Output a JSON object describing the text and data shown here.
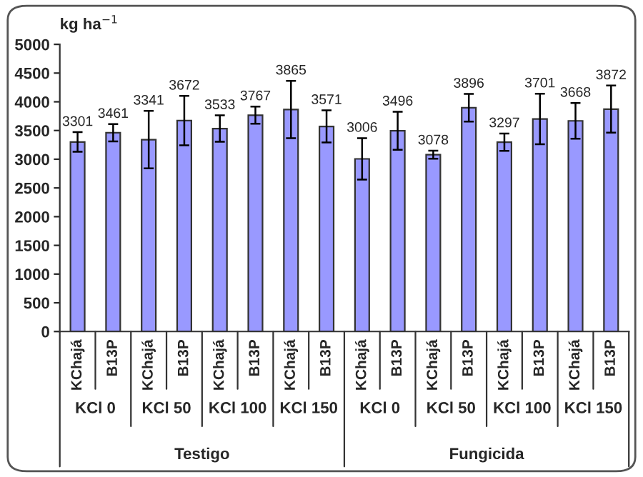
{
  "chart_data": {
    "type": "bar",
    "ylabel": "kg ha$^{−1}$",
    "categories": [
      "KChajá",
      "B13P",
      "KChajá",
      "B13P",
      "KChajá",
      "B13P",
      "KChajá",
      "B13P",
      "KChajá",
      "B13P",
      "KChajá",
      "B13P",
      "KChajá",
      "B13P",
      "KChajá",
      "B13P"
    ],
    "values": [
      3301,
      3461,
      3341,
      3672,
      3533,
      3767,
      3865,
      3571,
      3006,
      3496,
      3078,
      3896,
      3297,
      3701,
      3668,
      3872
    ],
    "errors": [
      170,
      150,
      500,
      430,
      230,
      150,
      500,
      280,
      360,
      330,
      70,
      240,
      150,
      440,
      310,
      410
    ],
    "color": "#9999ff",
    "data_labels": true,
    "annotations": [
      "KCl 0",
      "KCl 50",
      "KCl 100",
      "KCl 150",
      "KCl 0",
      "KCl 50",
      "KCl 100",
      "KCl 150",
      "Testigo",
      "Fungicida"
    ],
    "ylim": [
      0,
      5000
    ],
    "yticks": [
      0,
      500,
      1000,
      1500,
      2000,
      2500,
      3000,
      3500,
      4000,
      4500,
      5000
    ],
    "grid": false
  }
}
